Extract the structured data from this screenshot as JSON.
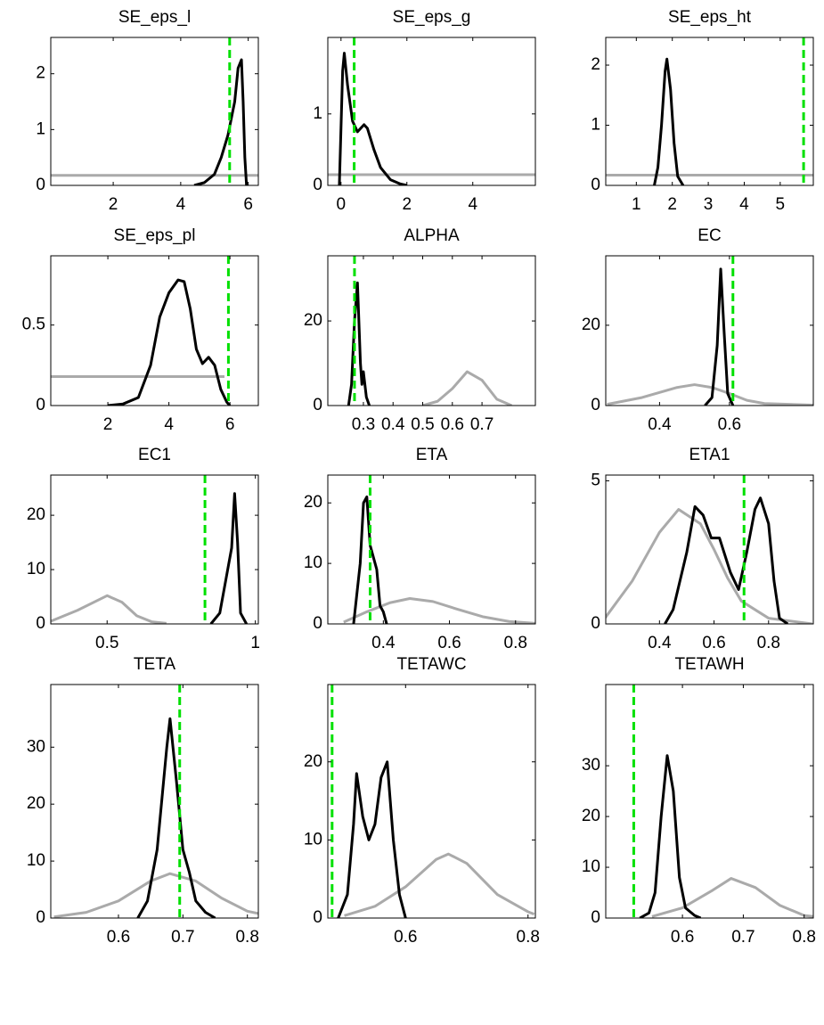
{
  "chart_data": [
    {
      "type": "line",
      "title": "SE_eps_l",
      "xlim": [
        0.15,
        6.3
      ],
      "ylim": [
        0,
        2.65
      ],
      "xticks": [
        2,
        4,
        6
      ],
      "yticks": [
        0,
        1,
        2
      ],
      "series": [
        {
          "color": "#aaaaaa",
          "x": [
            0.15,
            6.3
          ],
          "values": [
            0.18,
            0.18
          ]
        },
        {
          "color": "#000000",
          "x": [
            4.4,
            4.7,
            5.0,
            5.2,
            5.4,
            5.5,
            5.6,
            5.7,
            5.8,
            5.85,
            5.9,
            5.95
          ],
          "values": [
            0,
            0.05,
            0.2,
            0.5,
            0.9,
            1.2,
            1.5,
            2.1,
            2.25,
            1.5,
            0.5,
            0
          ]
        }
      ],
      "mode_line": {
        "x": 5.45,
        "color": "#00e000"
      }
    },
    {
      "type": "line",
      "title": "SE_eps_g",
      "xlim": [
        -0.4,
        5.9
      ],
      "ylim": [
        0,
        2.07
      ],
      "xticks": [
        0,
        2,
        4
      ],
      "yticks": [
        0,
        1
      ],
      "series": [
        {
          "color": "#aaaaaa",
          "x": [
            -0.4,
            5.9
          ],
          "values": [
            0.15,
            0.15
          ]
        },
        {
          "color": "#000000",
          "x": [
            -0.05,
            0.0,
            0.05,
            0.1,
            0.2,
            0.35,
            0.5,
            0.7,
            0.8,
            1.0,
            1.2,
            1.5,
            1.8,
            2.0
          ],
          "values": [
            0,
            0.8,
            1.6,
            1.85,
            1.4,
            0.9,
            0.75,
            0.85,
            0.8,
            0.5,
            0.25,
            0.08,
            0.02,
            0
          ]
        }
      ],
      "mode_line": {
        "x": 0.4,
        "color": "#00e000"
      }
    },
    {
      "type": "line",
      "title": "SE_eps_ht",
      "xlim": [
        0.15,
        5.92
      ],
      "ylim": [
        0,
        2.46
      ],
      "xticks": [
        1,
        2,
        3,
        4,
        5
      ],
      "yticks": [
        0,
        1,
        2
      ],
      "series": [
        {
          "color": "#aaaaaa",
          "x": [
            0.15,
            5.92
          ],
          "values": [
            0.17,
            0.17
          ]
        },
        {
          "color": "#000000",
          "x": [
            1.5,
            1.6,
            1.7,
            1.8,
            1.85,
            1.95,
            2.05,
            2.15,
            2.3
          ],
          "values": [
            0,
            0.3,
            1.0,
            1.9,
            2.1,
            1.6,
            0.7,
            0.15,
            0
          ]
        }
      ],
      "mode_line": {
        "x": 5.65,
        "color": "#00e000"
      }
    },
    {
      "type": "line",
      "title": "SE_eps_pl",
      "xlim": [
        0.13,
        6.93
      ],
      "ylim": [
        0,
        0.93
      ],
      "xticks": [
        2,
        4,
        6
      ],
      "yticks": [
        0,
        0.5
      ],
      "series": [
        {
          "color": "#aaaaaa",
          "x": [
            0.13,
            5.82
          ],
          "values": [
            0.18,
            0.18
          ]
        },
        {
          "color": "#000000",
          "x": [
            2.0,
            2.5,
            3.0,
            3.4,
            3.7,
            4.0,
            4.3,
            4.5,
            4.7,
            4.9,
            5.1,
            5.3,
            5.5,
            5.7,
            5.9,
            6.0
          ],
          "values": [
            0,
            0.01,
            0.05,
            0.25,
            0.55,
            0.7,
            0.78,
            0.77,
            0.6,
            0.35,
            0.26,
            0.3,
            0.25,
            0.1,
            0.02,
            0
          ]
        }
      ],
      "mode_line": {
        "x": 5.95,
        "color": "#00e000"
      }
    },
    {
      "type": "line",
      "title": "ALPHA",
      "xlim": [
        0.18,
        0.88
      ],
      "ylim": [
        0,
        35.4
      ],
      "xticks": [
        0.3,
        0.4,
        0.5,
        0.6,
        0.7
      ],
      "yticks": [
        0,
        20
      ],
      "series": [
        {
          "color": "#aaaaaa",
          "x": [
            0.5,
            0.55,
            0.6,
            0.65,
            0.7,
            0.75,
            0.8
          ],
          "values": [
            0,
            1,
            4,
            8,
            6,
            1.5,
            0
          ]
        },
        {
          "color": "#000000",
          "x": [
            0.25,
            0.26,
            0.27,
            0.28,
            0.29,
            0.295,
            0.3,
            0.31,
            0.32
          ],
          "values": [
            0,
            5,
            20,
            29,
            10,
            5,
            8,
            2,
            0
          ]
        }
      ],
      "mode_line": {
        "x": 0.27,
        "color": "#00e000"
      }
    },
    {
      "type": "line",
      "title": "EC",
      "xlim": [
        0.246,
        0.84
      ],
      "ylim": [
        0,
        37.3
      ],
      "xticks": [
        0.4,
        0.6
      ],
      "yticks": [
        0,
        20
      ],
      "series": [
        {
          "color": "#aaaaaa",
          "x": [
            0.25,
            0.35,
            0.45,
            0.5,
            0.55,
            0.6,
            0.65,
            0.7,
            0.84
          ],
          "values": [
            0.3,
            2,
            4.5,
            5.2,
            4.5,
            3,
            1.3,
            0.5,
            0.1
          ]
        },
        {
          "color": "#000000",
          "x": [
            0.53,
            0.55,
            0.565,
            0.575,
            0.585,
            0.595,
            0.61
          ],
          "values": [
            0,
            2,
            15,
            34,
            18,
            3,
            0
          ]
        }
      ],
      "mode_line": {
        "x": 0.61,
        "color": "#00e000"
      }
    },
    {
      "type": "line",
      "title": "EC1",
      "xlim": [
        0.31,
        1.01
      ],
      "ylim": [
        0,
        27.4
      ],
      "xticks": [
        0.5,
        1
      ],
      "yticks": [
        0,
        10,
        20
      ],
      "series": [
        {
          "color": "#aaaaaa",
          "x": [
            0.31,
            0.4,
            0.5,
            0.55,
            0.6,
            0.65,
            0.7
          ],
          "values": [
            0.5,
            2.5,
            5.2,
            4,
            1.5,
            0.4,
            0.1
          ]
        },
        {
          "color": "#000000",
          "x": [
            0.85,
            0.88,
            0.9,
            0.92,
            0.93,
            0.94,
            0.95,
            0.97
          ],
          "values": [
            0,
            2,
            8,
            14,
            24,
            15,
            2,
            0
          ]
        }
      ],
      "mode_line": {
        "x": 0.83,
        "color": "#00e000"
      }
    },
    {
      "type": "line",
      "title": "ETA",
      "xlim": [
        0.232,
        0.86
      ],
      "ylim": [
        0,
        24.6
      ],
      "xticks": [
        0.4,
        0.6,
        0.8
      ],
      "yticks": [
        0,
        10,
        20
      ],
      "series": [
        {
          "color": "#aaaaaa",
          "x": [
            0.28,
            0.35,
            0.42,
            0.48,
            0.55,
            0.62,
            0.7,
            0.78,
            0.86
          ],
          "values": [
            0.3,
            2,
            3.5,
            4.2,
            3.7,
            2.5,
            1.2,
            0.4,
            0.1
          ]
        },
        {
          "color": "#000000",
          "x": [
            0.31,
            0.33,
            0.34,
            0.35,
            0.36,
            0.37,
            0.38,
            0.39,
            0.4,
            0.41
          ],
          "values": [
            0,
            10,
            20,
            21,
            13,
            11,
            9,
            3,
            2,
            0
          ]
        }
      ],
      "mode_line": {
        "x": 0.36,
        "color": "#00e000"
      }
    },
    {
      "type": "line",
      "title": "ETA1",
      "xlim": [
        0.203,
        0.964
      ],
      "ylim": [
        0,
        5.2
      ],
      "xticks": [
        0.4,
        0.6,
        0.8
      ],
      "yticks": [
        0,
        5
      ],
      "series": [
        {
          "color": "#aaaaaa",
          "x": [
            0.2,
            0.3,
            0.4,
            0.47,
            0.55,
            0.6,
            0.65,
            0.7,
            0.8,
            0.96
          ],
          "values": [
            0.2,
            1.5,
            3.2,
            4,
            3.5,
            2.6,
            1.6,
            0.8,
            0.2,
            0
          ]
        },
        {
          "color": "#000000",
          "x": [
            0.42,
            0.45,
            0.5,
            0.53,
            0.56,
            0.59,
            0.62,
            0.66,
            0.69,
            0.72,
            0.75,
            0.77,
            0.8,
            0.82,
            0.84,
            0.87
          ],
          "values": [
            0,
            0.5,
            2.5,
            4.1,
            3.8,
            3.0,
            3.0,
            1.8,
            1.2,
            2.5,
            4.0,
            4.4,
            3.5,
            1.5,
            0.2,
            0
          ]
        }
      ],
      "mode_line": {
        "x": 0.71,
        "color": "#00e000"
      }
    },
    {
      "type": "line",
      "title": "TETA",
      "xlim": [
        0.495,
        0.817
      ],
      "ylim": [
        0,
        41
      ],
      "xticks": [
        0.6,
        0.7,
        0.8
      ],
      "yticks": [
        0,
        10,
        20,
        30
      ],
      "series": [
        {
          "color": "#aaaaaa",
          "x": [
            0.5,
            0.55,
            0.6,
            0.65,
            0.68,
            0.72,
            0.76,
            0.8,
            0.817
          ],
          "values": [
            0.2,
            1,
            3,
            6.5,
            7.8,
            6.5,
            3.5,
            1.2,
            0.8
          ]
        },
        {
          "color": "#000000",
          "x": [
            0.63,
            0.645,
            0.66,
            0.675,
            0.68,
            0.69,
            0.7,
            0.71,
            0.72,
            0.735,
            0.75
          ],
          "values": [
            0,
            3,
            12,
            30,
            35,
            24,
            12,
            8,
            3,
            1,
            0
          ]
        }
      ],
      "mode_line": {
        "x": 0.695,
        "color": "#00e000"
      }
    },
    {
      "type": "line",
      "title": "TETAWC",
      "xlim": [
        0.473,
        0.812
      ],
      "ylim": [
        0,
        29.9
      ],
      "xticks": [
        0.6,
        0.8
      ],
      "yticks": [
        0,
        10,
        20
      ],
      "series": [
        {
          "color": "#aaaaaa",
          "x": [
            0.5,
            0.55,
            0.6,
            0.65,
            0.67,
            0.7,
            0.75,
            0.8,
            0.81
          ],
          "values": [
            0.3,
            1.5,
            4,
            7.5,
            8.2,
            7,
            3,
            0.8,
            0.5
          ]
        },
        {
          "color": "#000000",
          "x": [
            0.49,
            0.505,
            0.515,
            0.52,
            0.53,
            0.54,
            0.55,
            0.56,
            0.57,
            0.58,
            0.59,
            0.6
          ],
          "values": [
            0,
            3,
            12,
            18.5,
            13,
            10,
            12,
            18,
            20,
            10,
            3,
            0
          ]
        }
      ],
      "mode_line": {
        "x": 0.48,
        "color": "#00e000"
      }
    },
    {
      "type": "line",
      "title": "TETAWH",
      "xlim": [
        0.474,
        0.815
      ],
      "ylim": [
        0,
        46
      ],
      "xticks": [
        0.6,
        0.7,
        0.8
      ],
      "yticks": [
        0,
        10,
        20,
        30
      ],
      "series": [
        {
          "color": "#aaaaaa",
          "x": [
            0.55,
            0.6,
            0.65,
            0.68,
            0.72,
            0.76,
            0.8,
            0.815
          ],
          "values": [
            0.3,
            2,
            5.5,
            7.8,
            6,
            2.5,
            0.5,
            0.3
          ]
        },
        {
          "color": "#000000",
          "x": [
            0.53,
            0.545,
            0.555,
            0.565,
            0.575,
            0.585,
            0.595,
            0.605,
            0.62,
            0.63
          ],
          "values": [
            0,
            1,
            5,
            20,
            32,
            25,
            8,
            2,
            0.5,
            0
          ]
        }
      ],
      "mode_line": {
        "x": 0.52,
        "color": "#00e000"
      }
    }
  ]
}
